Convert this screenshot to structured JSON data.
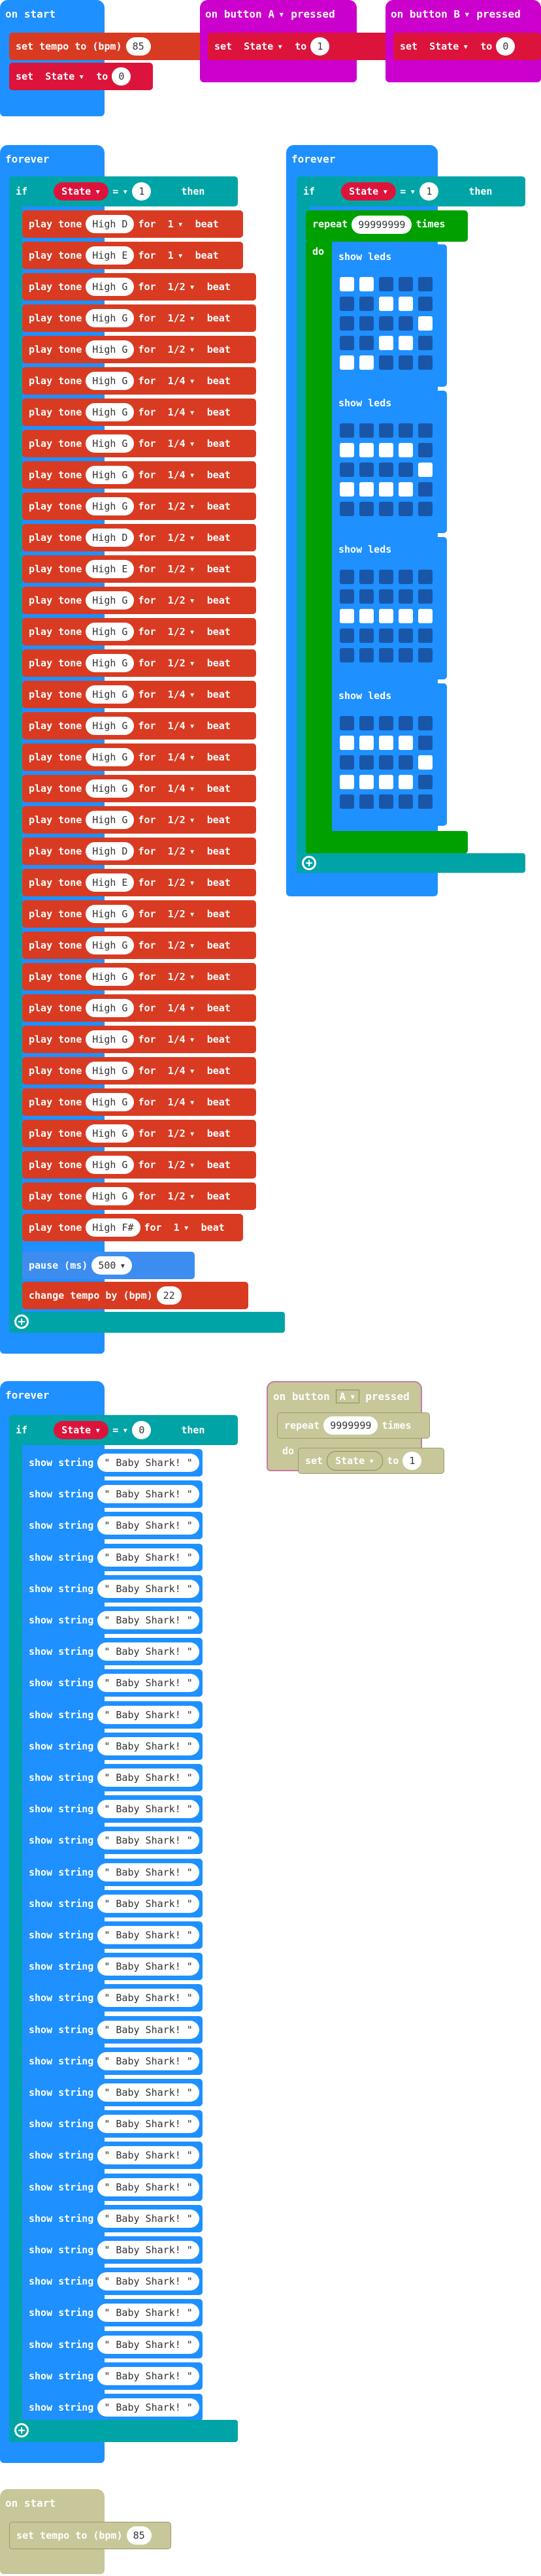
{
  "on_start_1": {
    "title": "on start",
    "tempo_label": "set tempo to (bpm)",
    "tempo_value": "85",
    "set_label": "set",
    "set_var": "State",
    "to_label": "to",
    "set_value": "0"
  },
  "on_button_a": {
    "title": "on button",
    "button": "A",
    "pressed": "pressed",
    "set_label": "set",
    "var": "State",
    "to_label": "to",
    "value": "1"
  },
  "on_button_b": {
    "title": "on button",
    "button": "B",
    "pressed": "pressed",
    "set_label": "set",
    "var": "State",
    "to_label": "to",
    "value": "0"
  },
  "forever_1": {
    "title": "forever",
    "if_label": "if",
    "var": "State",
    "op": "=",
    "value": "1",
    "then_label": "then",
    "play_label": "play tone",
    "for_label": "for",
    "beat_label": "beat",
    "tones": [
      {
        "note": "High D",
        "dur": "1"
      },
      {
        "note": "High E",
        "dur": "1"
      },
      {
        "note": "High G",
        "dur": "1/2"
      },
      {
        "note": "High G",
        "dur": "1/2"
      },
      {
        "note": "High G",
        "dur": "1/2"
      },
      {
        "note": "High G",
        "dur": "1/4"
      },
      {
        "note": "High G",
        "dur": "1/4"
      },
      {
        "note": "High G",
        "dur": "1/4"
      },
      {
        "note": "High G",
        "dur": "1/4"
      },
      {
        "note": "High G",
        "dur": "1/2"
      },
      {
        "note": "High D",
        "dur": "1/2"
      },
      {
        "note": "High E",
        "dur": "1/2"
      },
      {
        "note": "High G",
        "dur": "1/2"
      },
      {
        "note": "High G",
        "dur": "1/2"
      },
      {
        "note": "High G",
        "dur": "1/2"
      },
      {
        "note": "High G",
        "dur": "1/4"
      },
      {
        "note": "High G",
        "dur": "1/4"
      },
      {
        "note": "High G",
        "dur": "1/4"
      },
      {
        "note": "High G",
        "dur": "1/4"
      },
      {
        "note": "High G",
        "dur": "1/2"
      },
      {
        "note": "High D",
        "dur": "1/2"
      },
      {
        "note": "High E",
        "dur": "1/2"
      },
      {
        "note": "High G",
        "dur": "1/2"
      },
      {
        "note": "High G",
        "dur": "1/2"
      },
      {
        "note": "High G",
        "dur": "1/2"
      },
      {
        "note": "High G",
        "dur": "1/4"
      },
      {
        "note": "High G",
        "dur": "1/4"
      },
      {
        "note": "High G",
        "dur": "1/4"
      },
      {
        "note": "High G",
        "dur": "1/4"
      },
      {
        "note": "High G",
        "dur": "1/2"
      },
      {
        "note": "High G",
        "dur": "1/2"
      },
      {
        "note": "High G",
        "dur": "1/2"
      },
      {
        "note": "High F#",
        "dur": "1"
      }
    ],
    "pause_label": "pause (ms)",
    "pause_value": "500",
    "tempo_label": "change tempo by (bpm)",
    "tempo_value": "22"
  },
  "forever_2": {
    "title": "forever",
    "if_label": "if",
    "var": "State",
    "op": "=",
    "value": "1",
    "then_label": "then",
    "repeat_label": "repeat",
    "repeat_value": "99999999",
    "times_label": "times",
    "do_label": "do",
    "show_leds_label": "show leds",
    "led_frames": [
      [
        1,
        1,
        0,
        0,
        0,
        0,
        0,
        1,
        1,
        0,
        0,
        0,
        0,
        0,
        1,
        0,
        0,
        1,
        1,
        0,
        1,
        1,
        0,
        0,
        0
      ],
      [
        0,
        0,
        0,
        0,
        0,
        1,
        1,
        1,
        1,
        0,
        0,
        0,
        0,
        0,
        1,
        1,
        1,
        1,
        1,
        0,
        0,
        0,
        0,
        0,
        0
      ],
      [
        0,
        0,
        0,
        0,
        0,
        0,
        0,
        0,
        0,
        0,
        1,
        1,
        1,
        1,
        1,
        0,
        0,
        0,
        0,
        0,
        0,
        0,
        0,
        0,
        0
      ],
      [
        0,
        0,
        0,
        0,
        0,
        1,
        1,
        1,
        1,
        0,
        0,
        0,
        0,
        0,
        1,
        1,
        1,
        1,
        1,
        0,
        0,
        0,
        0,
        0,
        0
      ]
    ]
  },
  "forever_3": {
    "title": "forever",
    "if_label": "if",
    "var": "State",
    "op": "=",
    "value": "0",
    "then_label": "then",
    "show_label": "show string",
    "string_value": "\" Baby Shark! \"",
    "count": 31
  },
  "on_button_a2": {
    "title": "on button",
    "button": "A",
    "pressed": "pressed",
    "repeat_label": "repeat",
    "repeat_value": "9999999",
    "times_label": "times",
    "do_label": "do",
    "set_label": "set",
    "var": "State",
    "to_label": "to",
    "value": "1"
  },
  "on_start_2": {
    "title": "on start",
    "tempo_label": "set tempo to (bpm)",
    "tempo_value": "85"
  },
  "colors": {
    "event": "#1e90ff",
    "logic": "#00a4a6",
    "music": "#d83b22",
    "variable": "#dc143c",
    "input": "#cc00cc",
    "loop": "#00a000",
    "disabled": "#c7c79a"
  }
}
